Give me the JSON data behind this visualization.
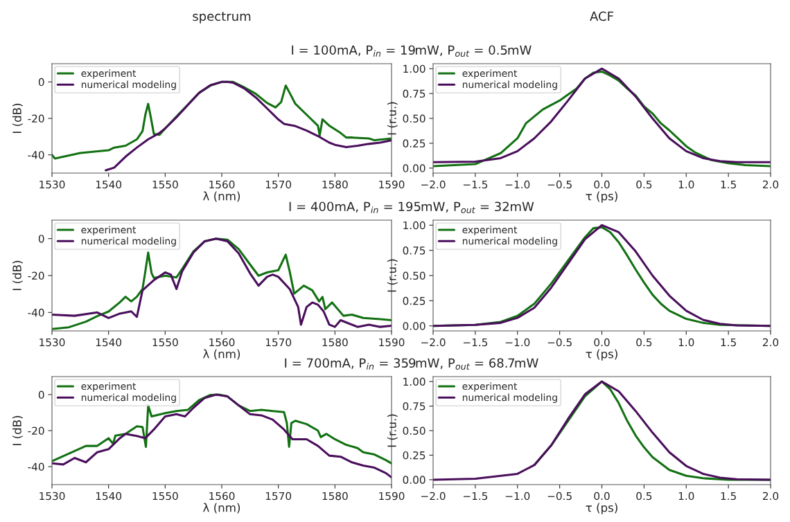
{
  "chart_data": [
    {
      "type": "line",
      "title": "spectrum",
      "subtitle": "I = 100mA, P$_{in}$ = 19mW, P$_{out}$ = 0.5mW",
      "xlabel": "λ (nm)",
      "ylabel": "I (dB)",
      "xlim": [
        1530,
        1590
      ],
      "ylim": [
        -50,
        10
      ],
      "xticks": [
        1530,
        1540,
        1550,
        1560,
        1570,
        1580,
        1590
      ],
      "yticks": [
        -40,
        -20,
        0
      ],
      "legend": "top left",
      "series": [
        {
          "name": "experiment",
          "color": "#127112",
          "x": [
            1530,
            1530.5,
            1535,
            1540,
            1541,
            1543,
            1545,
            1546,
            1546.5,
            1547,
            1547.5,
            1548,
            1549,
            1550,
            1552,
            1554,
            1556,
            1558,
            1560,
            1562,
            1564,
            1566,
            1568,
            1569.5,
            1570.5,
            1571.3,
            1572,
            1573,
            1575,
            1577,
            1577.3,
            1577.8,
            1579,
            1581,
            1582,
            1583,
            1586,
            1587,
            1590
          ],
          "values": [
            -40,
            -42,
            -39,
            -37.5,
            -36,
            -35,
            -31.5,
            -27,
            -18,
            -12,
            -20,
            -28.5,
            -29,
            -25.5,
            -19,
            -12.5,
            -6,
            -2,
            0,
            0,
            -3,
            -6.5,
            -11.5,
            -14,
            -11,
            -2,
            -6,
            -12,
            -18,
            -24,
            -29.5,
            -20.5,
            -24,
            -28,
            -30.5,
            -30.5,
            -31,
            -32,
            -31
          ]
        },
        {
          "name": "numerical modeling",
          "color": "#4a0e5c",
          "x": [
            1539.5,
            1541,
            1543,
            1545,
            1547,
            1549,
            1550,
            1552,
            1554,
            1556,
            1558,
            1560,
            1561,
            1562,
            1564,
            1566,
            1568,
            1570,
            1571,
            1573,
            1575,
            1577,
            1579,
            1580,
            1582,
            1584,
            1586,
            1588,
            1590
          ],
          "values": [
            -48.5,
            -47,
            -41,
            -36,
            -31.5,
            -28,
            -25.5,
            -19.4,
            -12.7,
            -6,
            -1.8,
            0,
            0,
            -0.4,
            -3.6,
            -8.5,
            -14.5,
            -20.6,
            -23,
            -24.2,
            -26.7,
            -29.7,
            -33.3,
            -34.5,
            -35.8,
            -35,
            -34,
            -33.3,
            -32
          ]
        }
      ]
    },
    {
      "type": "line",
      "title": "ACF",
      "xlabel": "τ (ps)",
      "ylabel": "I (r.u.)",
      "xlim": [
        -2,
        2
      ],
      "ylim": [
        -0.05,
        1.05
      ],
      "xticks": [
        {
          "value": -2,
          "label": "−2.0"
        },
        {
          "value": -1.5,
          "label": "−1.5"
        },
        {
          "value": -1,
          "label": "−1.0"
        },
        {
          "value": -0.5,
          "label": "−0.5"
        },
        {
          "value": 0,
          "label": "0.0"
        },
        {
          "value": 0.5,
          "label": "0.5"
        },
        {
          "value": 1,
          "label": "1.0"
        },
        {
          "value": 1.5,
          "label": "1.5"
        },
        {
          "value": 2,
          "label": "2.0"
        }
      ],
      "yticks": [
        {
          "value": 0,
          "label": "0.00"
        },
        {
          "value": 0.25,
          "label": "0.25"
        },
        {
          "value": 0.5,
          "label": "0.50"
        },
        {
          "value": 0.75,
          "label": "0.75"
        },
        {
          "value": 1,
          "label": "1.00"
        }
      ],
      "legend": "top left",
      "series": [
        {
          "name": "experiment",
          "color": "#127112",
          "x": [
            -2,
            -1.5,
            -1.2,
            -1.0,
            -0.9,
            -0.8,
            -0.7,
            -0.5,
            -0.4,
            -0.3,
            -0.2,
            -0.1,
            0,
            0.1,
            0.2,
            0.3,
            0.4,
            0.5,
            0.6,
            0.7,
            0.8,
            0.9,
            1.0,
            1.1,
            1.2,
            1.3,
            1.5,
            1.7,
            2.0
          ],
          "values": [
            0.02,
            0.04,
            0.15,
            0.3,
            0.45,
            0.52,
            0.59,
            0.68,
            0.74,
            0.8,
            0.9,
            0.96,
            0.97,
            0.93,
            0.88,
            0.8,
            0.73,
            0.62,
            0.55,
            0.45,
            0.38,
            0.3,
            0.22,
            0.16,
            0.12,
            0.08,
            0.05,
            0.03,
            0.02
          ]
        },
        {
          "name": "numerical modeling",
          "color": "#4a0e5c",
          "x": [
            -2,
            -1.5,
            -1.2,
            -1.0,
            -0.8,
            -0.6,
            -0.4,
            -0.2,
            0,
            0.2,
            0.4,
            0.6,
            0.8,
            1.0,
            1.2,
            1.4,
            1.6,
            2.0
          ],
          "values": [
            0.06,
            0.065,
            0.1,
            0.17,
            0.3,
            0.47,
            0.68,
            0.9,
            1.0,
            0.9,
            0.72,
            0.5,
            0.3,
            0.17,
            0.1,
            0.07,
            0.06,
            0.06
          ]
        }
      ]
    },
    {
      "type": "line",
      "subtitle": "I = 400mA, P$_{in}$ = 195mW, P$_{out}$ = 32mW",
      "xlabel": "λ (nm)",
      "ylabel": "I (dB)",
      "xlim": [
        1530,
        1590
      ],
      "ylim": [
        -50,
        10
      ],
      "xticks": [
        1530,
        1540,
        1550,
        1560,
        1570,
        1580,
        1590
      ],
      "yticks": [
        -40,
        -20,
        0
      ],
      "legend": "top left",
      "series": [
        {
          "name": "experiment",
          "color": "#127112",
          "x": [
            1530,
            1533,
            1536,
            1538,
            1540,
            1542,
            1543,
            1544,
            1545,
            1546,
            1546.5,
            1547,
            1547.6,
            1548,
            1550,
            1552,
            1553,
            1555,
            1557,
            1559,
            1561,
            1563,
            1565,
            1566.5,
            1568,
            1570,
            1571.3,
            1572,
            1572.8,
            1574.5,
            1576,
            1577.2,
            1577.8,
            1578.3,
            1579.5,
            1581.5,
            1583,
            1585,
            1588,
            1590
          ],
          "values": [
            -49,
            -48,
            -45,
            -42,
            -39.5,
            -34.5,
            -31.5,
            -34,
            -31.5,
            -27.3,
            -17.7,
            -7.5,
            -18.7,
            -21.3,
            -20.1,
            -21,
            -16.5,
            -6.9,
            -1.4,
            0,
            -0.6,
            -5.7,
            -14,
            -20.1,
            -18.3,
            -17.1,
            -8.7,
            -17.7,
            -29.8,
            -25.5,
            -28,
            -34,
            -31.6,
            -38.2,
            -34.6,
            -41.8,
            -41.2,
            -43,
            -43.6,
            -44.2
          ]
        },
        {
          "name": "numerical modeling",
          "color": "#4a0e5c",
          "x": [
            1530,
            1534,
            1538,
            1540,
            1542,
            1544,
            1545,
            1546,
            1548,
            1550,
            1551,
            1552,
            1553,
            1555,
            1557,
            1559,
            1561,
            1563,
            1565,
            1566.5,
            1568,
            1569,
            1570,
            1572,
            1573.5,
            1574,
            1575,
            1576,
            1577,
            1578,
            1579,
            1580,
            1581,
            1582,
            1584,
            1586,
            1588,
            1590
          ],
          "values": [
            -41.2,
            -41.8,
            -40,
            -43,
            -40.6,
            -39.4,
            -42.4,
            -28,
            -22.5,
            -18.3,
            -19.5,
            -27.3,
            -17.7,
            -7.5,
            -1.4,
            0,
            -1.4,
            -8,
            -18.8,
            -25.5,
            -20.7,
            -19.5,
            -20.7,
            -27.3,
            -37,
            -46.6,
            -37,
            -34.6,
            -35.8,
            -39.4,
            -46.6,
            -47.8,
            -44.2,
            -45.4,
            -47.8,
            -46.6,
            -47.8,
            -47.2
          ]
        }
      ]
    },
    {
      "type": "line",
      "xlabel": "τ (ps)",
      "ylabel": "I (r.u.)",
      "xlim": [
        -2,
        2
      ],
      "ylim": [
        -0.05,
        1.05
      ],
      "xticks": [
        {
          "value": -2,
          "label": "−2.0"
        },
        {
          "value": -1.5,
          "label": "−1.5"
        },
        {
          "value": -1,
          "label": "−1.0"
        },
        {
          "value": -0.5,
          "label": "−0.5"
        },
        {
          "value": 0,
          "label": "0.0"
        },
        {
          "value": 0.5,
          "label": "0.5"
        },
        {
          "value": 1,
          "label": "1.0"
        },
        {
          "value": 1.5,
          "label": "1.5"
        },
        {
          "value": 2,
          "label": "2.0"
        }
      ],
      "yticks": [
        {
          "value": 0,
          "label": "0.00"
        },
        {
          "value": 0.25,
          "label": "0.25"
        },
        {
          "value": 0.5,
          "label": "0.50"
        },
        {
          "value": 0.75,
          "label": "0.75"
        },
        {
          "value": 1,
          "label": "1.00"
        }
      ],
      "legend": "top left",
      "series": [
        {
          "name": "experiment",
          "color": "#127112",
          "x": [
            -2,
            -1.5,
            -1.2,
            -1.0,
            -0.8,
            -0.6,
            -0.4,
            -0.2,
            -0.1,
            0,
            0.1,
            0.2,
            0.3,
            0.4,
            0.5,
            0.6,
            0.7,
            0.8,
            1.0,
            1.2,
            1.4,
            2.0
          ],
          "values": [
            0,
            0.01,
            0.04,
            0.1,
            0.22,
            0.42,
            0.65,
            0.88,
            0.97,
            0.98,
            0.93,
            0.83,
            0.7,
            0.56,
            0.43,
            0.31,
            0.22,
            0.15,
            0.07,
            0.03,
            0.01,
            0
          ]
        },
        {
          "name": "numerical modeling",
          "color": "#4a0e5c",
          "x": [
            -2,
            -1.5,
            -1.2,
            -1.0,
            -0.8,
            -0.6,
            -0.4,
            -0.2,
            0,
            0.2,
            0.4,
            0.6,
            0.8,
            1.0,
            1.2,
            1.4,
            1.6,
            2.0
          ],
          "values": [
            0,
            0.01,
            0.03,
            0.08,
            0.18,
            0.38,
            0.62,
            0.86,
            1.0,
            0.93,
            0.74,
            0.5,
            0.3,
            0.15,
            0.06,
            0.02,
            0.005,
            0
          ]
        }
      ]
    },
    {
      "type": "line",
      "subtitle": "I = 700mA, P$_{in}$ = 359mW, P$_{out}$ = 68.7mW",
      "xlabel": "λ (nm)",
      "ylabel": "I (dB)",
      "xlim": [
        1530,
        1590
      ],
      "ylim": [
        -50,
        10
      ],
      "xticks": [
        1530,
        1540,
        1550,
        1560,
        1570,
        1580,
        1590
      ],
      "yticks": [
        -40,
        -20,
        0
      ],
      "legend": "top left",
      "series": [
        {
          "name": "experiment",
          "color": "#127112",
          "x": [
            1530,
            1533,
            1536,
            1538,
            1540,
            1540.8,
            1541.2,
            1543,
            1545,
            1546,
            1546.6,
            1547,
            1547.6,
            1550,
            1552,
            1554,
            1556,
            1558,
            1559.5,
            1561,
            1563,
            1565,
            1567,
            1569,
            1571,
            1571.5,
            1571.9,
            1572.3,
            1573,
            1575,
            1577,
            1577.5,
            1578.5,
            1580,
            1582,
            1584,
            1585,
            1587,
            1589,
            1590
          ],
          "values": [
            -37,
            -32.7,
            -28.5,
            -28.5,
            -24.2,
            -27.3,
            -22.8,
            -21.8,
            -17.6,
            -18,
            -29,
            -6,
            -12.1,
            -10.3,
            -9.1,
            -8.5,
            -3,
            -0.2,
            0,
            -1,
            -6,
            -9.1,
            -8.5,
            -9.1,
            -9.7,
            -15.8,
            -29,
            -15.8,
            -14.5,
            -16.4,
            -20,
            -23.6,
            -21.8,
            -24.8,
            -27.9,
            -29.7,
            -32,
            -33.3,
            -36.4,
            -38.2
          ]
        },
        {
          "name": "numerical modeling",
          "color": "#4a0e5c",
          "x": [
            1530,
            1532,
            1534,
            1536,
            1538,
            1540,
            1542,
            1543,
            1545,
            1546.5,
            1548,
            1550,
            1552,
            1553.5,
            1555,
            1557,
            1559,
            1561,
            1563,
            1565,
            1567,
            1569,
            1571,
            1572.5,
            1575,
            1577,
            1579,
            1581,
            1583,
            1585,
            1587,
            1589,
            1590
          ],
          "values": [
            -38.2,
            -38.8,
            -35.2,
            -37.6,
            -32,
            -30.3,
            -24.2,
            -21.8,
            -23,
            -24.2,
            -19.4,
            -12.1,
            -10.9,
            -12.1,
            -7.3,
            -1.8,
            0,
            -1,
            -6,
            -10.9,
            -11.5,
            -13.9,
            -19.4,
            -24.8,
            -24.8,
            -28.5,
            -33.9,
            -34.5,
            -37.6,
            -39.4,
            -40.6,
            -43.6,
            -46
          ]
        }
      ]
    },
    {
      "type": "line",
      "xlabel": "τ (ps)",
      "ylabel": "I (r.u.)",
      "xlim": [
        -2,
        2
      ],
      "ylim": [
        -0.05,
        1.05
      ],
      "xticks": [
        {
          "value": -2,
          "label": "−2.0"
        },
        {
          "value": -1.5,
          "label": "−1.5"
        },
        {
          "value": -1,
          "label": "−1.0"
        },
        {
          "value": -0.5,
          "label": "−0.5"
        },
        {
          "value": 0,
          "label": "0.0"
        },
        {
          "value": 0.5,
          "label": "0.5"
        },
        {
          "value": 1,
          "label": "1.0"
        },
        {
          "value": 1.5,
          "label": "1.5"
        },
        {
          "value": 2,
          "label": "2.0"
        }
      ],
      "yticks": [
        {
          "value": 0,
          "label": "0.00"
        },
        {
          "value": 0.25,
          "label": "0.25"
        },
        {
          "value": 0.5,
          "label": "0.50"
        },
        {
          "value": 0.75,
          "label": "0.75"
        },
        {
          "value": 1,
          "label": "1.00"
        }
      ],
      "legend": "top left",
      "series": [
        {
          "name": "experiment",
          "color": "#127112",
          "x": [
            -0.8,
            -0.6,
            -0.4,
            -0.2,
            0,
            0.1,
            0.2,
            0.3,
            0.4,
            0.5,
            0.6,
            0.8,
            1.0,
            1.2,
            1.5,
            2.0
          ],
          "values": [
            0.15,
            0.35,
            0.6,
            0.85,
            1.0,
            0.92,
            0.78,
            0.6,
            0.45,
            0.33,
            0.23,
            0.1,
            0.04,
            0.015,
            0,
            0
          ]
        },
        {
          "name": "numerical modeling",
          "color": "#4a0e5c",
          "x": [
            -2,
            -1.5,
            -1.0,
            -0.8,
            -0.6,
            -0.4,
            -0.2,
            0,
            0.2,
            0.4,
            0.6,
            0.8,
            1.0,
            1.2,
            1.4,
            1.6,
            2.0
          ],
          "values": [
            0,
            0.01,
            0.06,
            0.15,
            0.35,
            0.62,
            0.87,
            1.0,
            0.9,
            0.7,
            0.48,
            0.28,
            0.14,
            0.06,
            0.02,
            0.005,
            0
          ]
        }
      ]
    }
  ]
}
